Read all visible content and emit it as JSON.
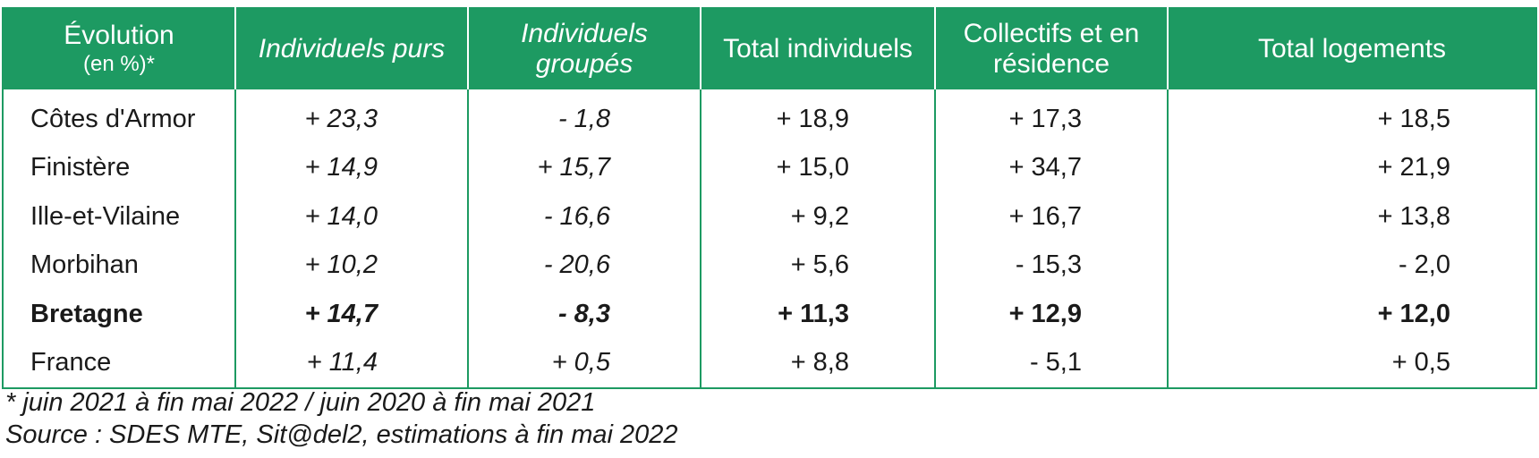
{
  "table": {
    "header": {
      "col0_line1": "Évolution",
      "col0_line2": "(en %)*",
      "col1": "Individuels purs",
      "col2_line1": "Individuels",
      "col2_line2": "groupés",
      "col3": "Total individuels",
      "col4_line1": "Collectifs et en",
      "col4_line2": "résidence",
      "col5": "Total logements"
    },
    "rows": [
      {
        "label": "Côtes d'Armor",
        "v1": "+ 23,3",
        "v2": "- 1,8",
        "v3": "+ 18,9",
        "v4": "+ 17,3",
        "v5": "+ 18,5"
      },
      {
        "label": "Finistère",
        "v1": "+ 14,9",
        "v2": "+ 15,7",
        "v3": "+ 15,0",
        "v4": "+ 34,7",
        "v5": "+ 21,9"
      },
      {
        "label": "Ille-et-Vilaine",
        "v1": "+ 14,0",
        "v2": "- 16,6",
        "v3": "+ 9,2",
        "v4": "+ 16,7",
        "v5": "+ 13,8"
      },
      {
        "label": "Morbihan",
        "v1": "+ 10,2",
        "v2": "- 20,6",
        "v3": "+ 5,6",
        "v4": "- 15,3",
        "v5": "- 2,0"
      },
      {
        "label": "Bretagne",
        "v1": "+ 14,7",
        "v2": "- 8,3",
        "v3": "+ 11,3",
        "v4": "+ 12,9",
        "v5": "+ 12,0"
      },
      {
        "label": "France",
        "v1": "+ 11,4",
        "v2": "+ 0,5",
        "v3": "+ 8,8",
        "v4": "- 5,1",
        "v5": "+ 0,5"
      }
    ]
  },
  "notes": {
    "footnote": "* juin 2021 à fin mai 2022 / juin 2020 à fin mai 2021",
    "source": "Source : SDES MTE, Sit@del2, estimations à fin mai 2022"
  }
}
